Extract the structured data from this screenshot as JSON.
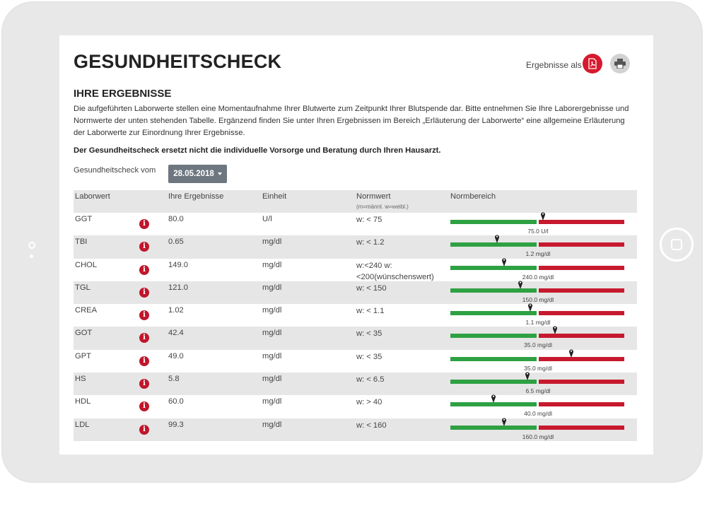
{
  "page": {
    "title": "GESUNDHEITSCHECK",
    "export_label": "Ergebnisse als",
    "subtitle": "IHRE ERGEBNISSE",
    "intro": "Die aufgeführten Laborwerte stellen eine Momentaufnahme Ihrer Blutwerte zum Zeitpunkt Ihrer Blutspende dar. Bitte entnehmen Sie Ihre Laborergebnisse und Normwerte der unten stehenden Tabelle. Ergänzend finden Sie unter Ihren Ergebnissen im Bereich „Erläuterung der Laborwerte“ eine allgemeine Erläuterung der Laborwerte zur Einordnung Ihrer Ergebnisse.",
    "disclaimer": "Der Gesundheitscheck ersetzt nicht die individuelle Vorsorge und Beratung durch Ihren Hausarzt.",
    "date_label": "Gesundheitscheck vom",
    "date_value": "28.05.2018"
  },
  "icons": {
    "pdf": "pdf-icon",
    "print": "printer-icon",
    "info": "info-icon",
    "marker": "map-pin-icon"
  },
  "colors": {
    "accent": "#d6192e",
    "normal": "#2ea143",
    "abnormal": "#c7192e",
    "select": "#6e7780"
  },
  "table": {
    "headers": {
      "lab": "Laborwert",
      "result": "Ihre Ergebnisse",
      "unit": "Einheit",
      "norm": "Normwert",
      "norm_note": "(m=männl. w=weibl.)",
      "range": "Normbereich"
    },
    "rows": [
      {
        "name": "GGT",
        "result": "80.0",
        "unit": "U/l",
        "norm": "w: < 75",
        "limit_label": "75.0 U/l",
        "ratio": 1.07
      },
      {
        "name": "TBI",
        "result": "0.65",
        "unit": "mg/dl",
        "norm": "w: < 1.2",
        "limit_label": "1.2 mg/dl",
        "ratio": 0.54
      },
      {
        "name": "CHOL",
        "result": "149.0",
        "unit": "mg/dl",
        "norm": "w:<240 w: <200(wünschenswert)",
        "limit_label": "240.0 mg/dl",
        "ratio": 0.62
      },
      {
        "name": "TGL",
        "result": "121.0",
        "unit": "mg/dl",
        "norm": "w: < 150",
        "limit_label": "150.0 mg/dl",
        "ratio": 0.81
      },
      {
        "name": "CREA",
        "result": "1.02",
        "unit": "mg/dl",
        "norm": "w: < 1.1",
        "limit_label": "1.1 mg/dl",
        "ratio": 0.93
      },
      {
        "name": "GOT",
        "result": "42.4",
        "unit": "mg/dl",
        "norm": "w: < 35",
        "limit_label": "35.0 mg/dl",
        "ratio": 1.21
      },
      {
        "name": "GPT",
        "result": "49.0",
        "unit": "mg/dl",
        "norm": "w: < 35",
        "limit_label": "35.0 mg/dl",
        "ratio": 1.4
      },
      {
        "name": "HS",
        "result": "5.8",
        "unit": "mg/dl",
        "norm": "w: < 6.5",
        "limit_label": "6.5 mg/dl",
        "ratio": 0.89
      },
      {
        "name": "HDL",
        "result": "60.0",
        "unit": "mg/dl",
        "norm": "w: > 40",
        "limit_label": "40.0 mg/dl",
        "ratio": 0.5
      },
      {
        "name": "LDL",
        "result": "99.3",
        "unit": "mg/dl",
        "norm": "w: < 160",
        "limit_label": "160.0 mg/dl",
        "ratio": 0.62
      }
    ]
  }
}
